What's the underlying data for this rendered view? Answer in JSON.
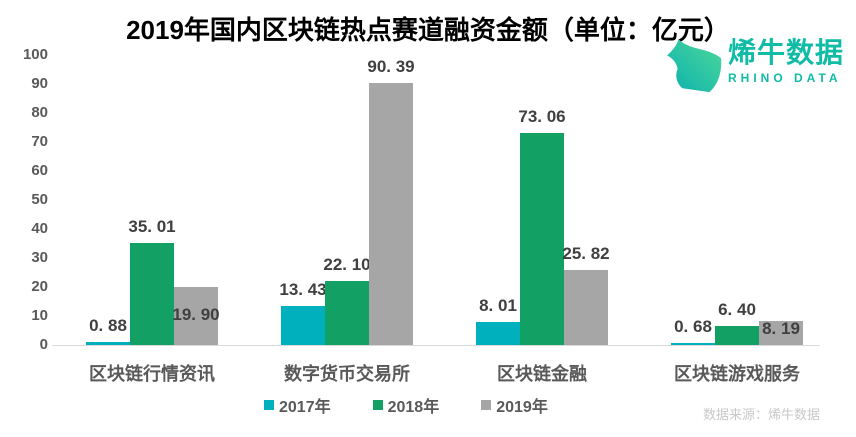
{
  "title": "2019年国内区块链热点赛道融资金额（单位：亿元）",
  "logo": {
    "name": "烯牛数据",
    "subtitle": "RHINO DATA",
    "brand_color": "#10BCA6"
  },
  "source": "数据来源：烯牛数据",
  "colors": {
    "series_2017": "#00B0BC",
    "series_2018": "#13A064",
    "series_2019": "#A6A6A6",
    "axis_line": "#D9D9D9",
    "tick_text": "#595959",
    "value_label_text": "#404040",
    "source_text": "#C8C8C8"
  },
  "chart_data": {
    "type": "bar",
    "title": "2019年国内区块链热点赛道融资金额（单位：亿元）",
    "unit": "亿元",
    "categories": [
      "区块链行情资讯",
      "数字货币交易所",
      "区块链金融",
      "区块链游戏服务"
    ],
    "series": [
      {
        "name": "2017年",
        "color": "#00B0BC",
        "values": [
          0.88,
          13.43,
          8.01,
          0.68
        ],
        "labels": [
          "0. 88",
          "13. 43",
          "8. 01",
          "0. 68"
        ]
      },
      {
        "name": "2018年",
        "color": "#13A064",
        "values": [
          35.01,
          22.1,
          73.06,
          6.4
        ],
        "labels": [
          "35. 01",
          "22. 10",
          "73. 06",
          "6. 40"
        ]
      },
      {
        "name": "2019年",
        "color": "#A6A6A6",
        "values": [
          19.9,
          90.39,
          25.82,
          8.19
        ],
        "labels": [
          "19. 90",
          "90. 39",
          "25. 82",
          "8. 19"
        ]
      }
    ],
    "ylim": [
      0,
      100
    ],
    "yticks": [
      0,
      10,
      20,
      30,
      40,
      50,
      60,
      70,
      80,
      90,
      100
    ],
    "grid": false,
    "legend_position": "bottom"
  }
}
